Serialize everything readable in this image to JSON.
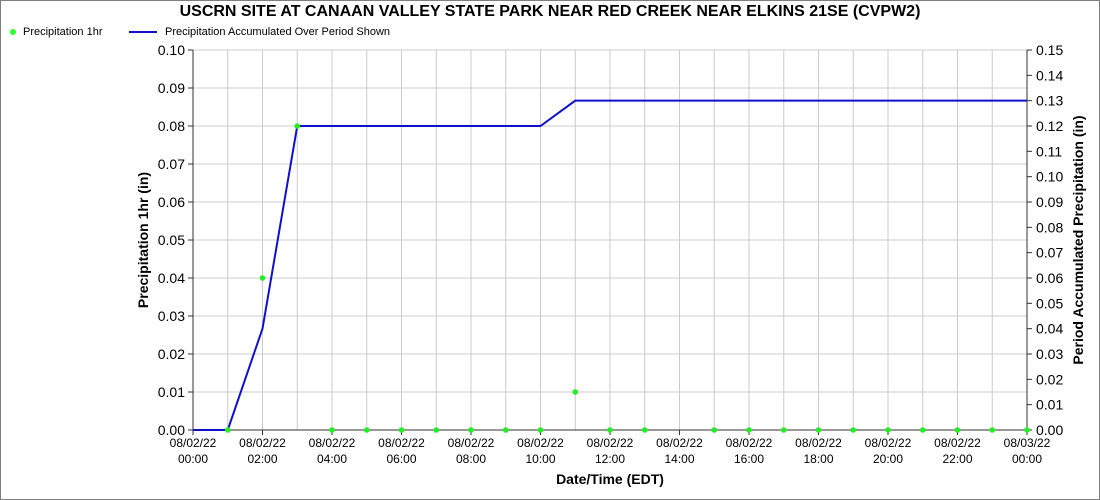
{
  "chart_data": {
    "type": "line",
    "title": "USCRN SITE AT CANAAN VALLEY STATE PARK NEAR RED CREEK NEAR ELKINS 21SE (CVPW2)",
    "xlabel": "Date/Time (EDT)",
    "ylabel_left": "Precipitation 1hr (in)",
    "ylabel_right": "Period Accumulated Precipitation (in)",
    "ylim_left": [
      0,
      0.1
    ],
    "ylim_right": [
      0,
      0.15
    ],
    "yticks_left": [
      "0.00",
      "0.01",
      "0.02",
      "0.03",
      "0.04",
      "0.05",
      "0.06",
      "0.07",
      "0.08",
      "0.09",
      "0.10"
    ],
    "yticks_right": [
      "0.00",
      "0.01",
      "0.02",
      "0.03",
      "0.04",
      "0.05",
      "0.06",
      "0.07",
      "0.08",
      "0.09",
      "0.10",
      "0.11",
      "0.12",
      "0.13",
      "0.14",
      "0.15"
    ],
    "xticks": [
      {
        "date": "08/02/22",
        "time": "00:00"
      },
      {
        "date": "08/02/22",
        "time": "02:00"
      },
      {
        "date": "08/02/22",
        "time": "04:00"
      },
      {
        "date": "08/02/22",
        "time": "06:00"
      },
      {
        "date": "08/02/22",
        "time": "08:00"
      },
      {
        "date": "08/02/22",
        "time": "10:00"
      },
      {
        "date": "08/02/22",
        "time": "12:00"
      },
      {
        "date": "08/02/22",
        "time": "14:00"
      },
      {
        "date": "08/02/22",
        "time": "16:00"
      },
      {
        "date": "08/02/22",
        "time": "18:00"
      },
      {
        "date": "08/02/22",
        "time": "20:00"
      },
      {
        "date": "08/02/22",
        "time": "22:00"
      },
      {
        "date": "08/03/22",
        "time": "00:00"
      }
    ],
    "x_hours": [
      1,
      2,
      3,
      4,
      5,
      6,
      7,
      8,
      9,
      10,
      11,
      12,
      13,
      15,
      16,
      17,
      18,
      19,
      20,
      21,
      22,
      23,
      24
    ],
    "grid": true,
    "legend_placement": "top-left",
    "series": [
      {
        "name": "Precipitation 1hr",
        "axis": "left",
        "style": "points",
        "color": "#22ee22",
        "values": [
          0.0,
          0.04,
          0.08,
          0.0,
          0.0,
          0.0,
          0.0,
          0.0,
          0.0,
          0.0,
          0.01,
          0.0,
          0.0,
          0.0,
          0.0,
          0.0,
          0.0,
          0.0,
          0.0,
          0.0,
          0.0,
          0.0,
          0.0
        ]
      },
      {
        "name": "Precipitation Accumulated Over Period Shown",
        "axis": "right",
        "style": "line",
        "color": "#1010cc",
        "x_hours": [
          0,
          1,
          2,
          3,
          10,
          11,
          24
        ],
        "values": [
          0.0,
          0.0,
          0.04,
          0.12,
          0.12,
          0.13,
          0.13
        ]
      }
    ]
  }
}
